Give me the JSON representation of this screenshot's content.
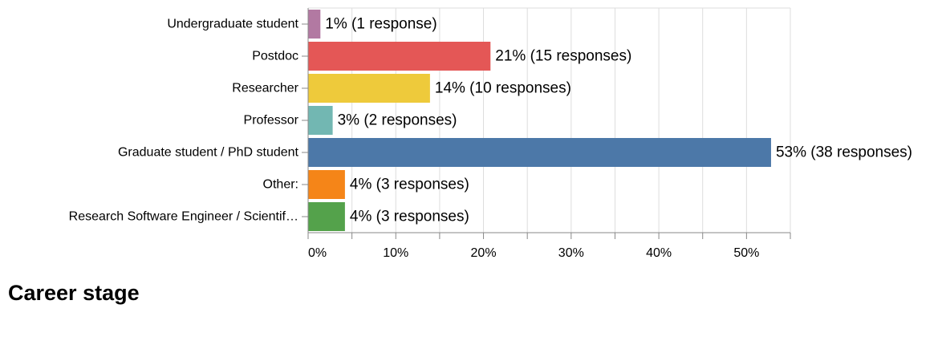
{
  "chart_data": {
    "type": "bar",
    "orientation": "horizontal",
    "title": "Career stage",
    "categories": [
      "Undergraduate student",
      "Postdoc",
      "Researcher",
      "Professor",
      "Graduate student / PhD student",
      "Other:",
      "Research Software Engineer / Scientif…"
    ],
    "values": [
      1.4,
      20.8,
      13.9,
      2.8,
      52.8,
      4.2,
      4.2
    ],
    "data_labels": [
      "1% (1 response)",
      "21% (15 responses)",
      "14% (10 responses)",
      "3% (2 responses)",
      "53% (38 responses)",
      "4% (3 responses)",
      "4% (3 responses)"
    ],
    "colors": [
      "#b279a2",
      "#e45756",
      "#eeca3b",
      "#72b7b2",
      "#4c78a8",
      "#f58518",
      "#54a24b"
    ],
    "x_ticks": [
      {
        "value": 0,
        "label": "0%"
      },
      {
        "value": 10,
        "label": "10%"
      },
      {
        "value": 20,
        "label": "20%"
      },
      {
        "value": 30,
        "label": "30%"
      },
      {
        "value": 40,
        "label": "40%"
      },
      {
        "value": 50,
        "label": "50%"
      }
    ],
    "xlim": [
      0,
      55
    ],
    "grid": true
  }
}
